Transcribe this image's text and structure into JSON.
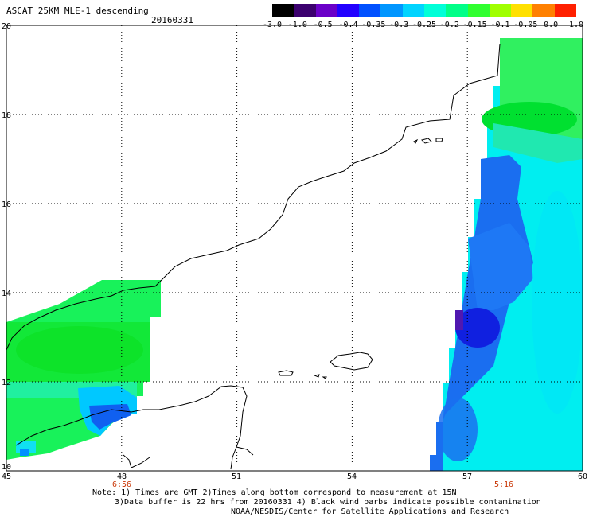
{
  "header": {
    "title": "ASCAT 25KM MLE-1 descending",
    "date": "20160331"
  },
  "colorbar": {
    "labels": [
      "-3.0",
      "-1.0",
      "-0.5",
      "-0.4",
      "-0.35",
      "-0.3",
      "-0.25",
      "-0.2",
      "-0.15",
      "-0.1",
      "-0.05",
      "0.0",
      "1.0"
    ],
    "colors": [
      "#000000",
      "#3b006e",
      "#6a00c8",
      "#2200ff",
      "#0050ff",
      "#0096ff",
      "#00d4ff",
      "#00ffd8",
      "#00ff88",
      "#30ff30",
      "#a0ff00",
      "#ffe000",
      "#ff8000",
      "#ff2000"
    ]
  },
  "map": {
    "lon_labels": [
      "45",
      "48",
      "51",
      "54",
      "57",
      "60"
    ],
    "lat_labels": [
      "20",
      "18",
      "16",
      "14",
      "12",
      "10"
    ],
    "time_labels": [
      "6:56",
      "5:16"
    ],
    "time_color": "#c83200",
    "lon_range": [
      45,
      60
    ],
    "lat_range": [
      10,
      20
    ]
  },
  "notes": {
    "line1": "Note: 1) Times are GMT 2)Times along bottom correspond to measurement at 15N",
    "line2": "3)Data buffer is 22 hrs from 20160331 4) Black wind barbs indicate possible contamination",
    "line3": "NOAA/NESDIS/Center for Satellite Applications and Research"
  }
}
